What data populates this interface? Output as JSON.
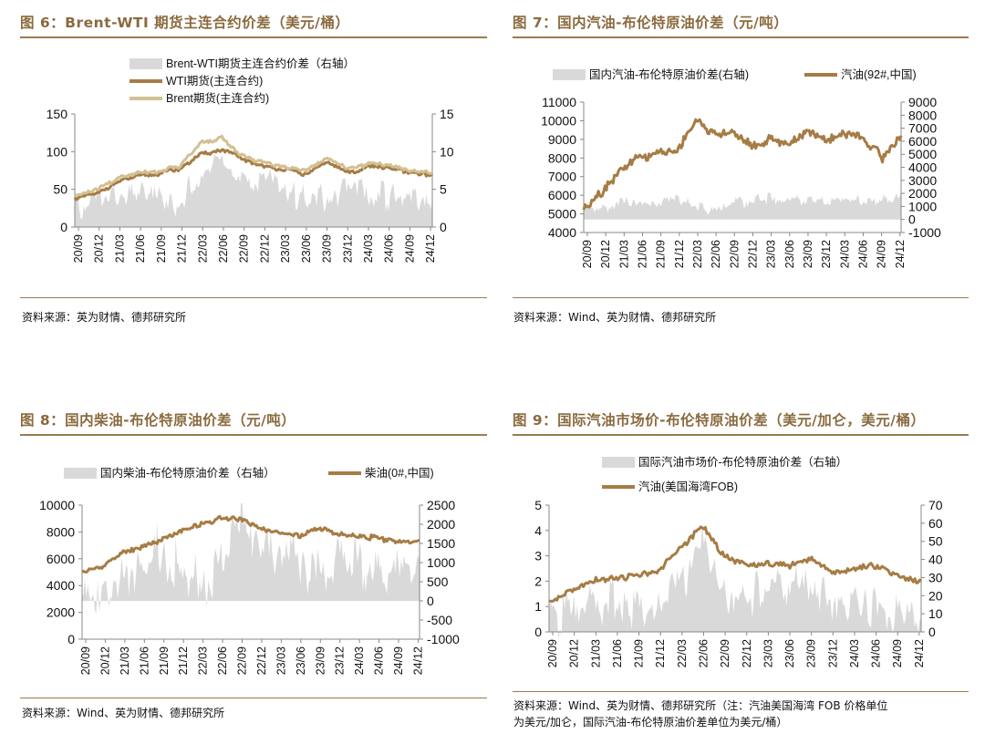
{
  "colors": {
    "area": "#d9d9d9",
    "line": "#a67c45",
    "line2": "#d3c092",
    "title": "#8B6A3E"
  },
  "x_ticks": [
    "20/09",
    "20/12",
    "21/03",
    "21/06",
    "21/09",
    "21/12",
    "22/03",
    "22/06",
    "22/09",
    "22/12",
    "23/03",
    "23/06",
    "23/09",
    "23/12",
    "24/03",
    "24/06",
    "24/09",
    "24/12"
  ],
  "x_ticks_short": [
    "20/09",
    "20/12",
    "21/03",
    "21/06",
    "21/09",
    "21/12",
    "22/03",
    "22/06",
    "22/09",
    "22/12",
    "23/03",
    "23/06",
    "23/09",
    "23/12",
    "24/03",
    "24/06",
    "24/09",
    "24/12"
  ],
  "panels": [
    {
      "title": "图 6：Brent-WTI 期货主连合约价差（美元/桶）",
      "source": "资料来源：英为财情、德邦研究所",
      "source_line2": "",
      "chart_data": {
        "type": "line",
        "legend": [
          "Brent-WTI期货主连合约价差（右轴）",
          "WTI期货(主连合约)",
          "Brent期货(主连合约)"
        ],
        "left_ticks": [
          "0",
          "50",
          "100",
          "150"
        ],
        "right_ticks": [
          "0",
          "5",
          "10",
          "15"
        ],
        "ylim": [
          0,
          150
        ],
        "ylim_right": [
          0,
          15
        ],
        "x": [
          0,
          1,
          2,
          3,
          4,
          5,
          6,
          7,
          8,
          9,
          10,
          11,
          12,
          13,
          14,
          15,
          16,
          17
        ],
        "series": [
          {
            "name": "WTI期货(主连合约)",
            "values": [
              38,
              44,
              60,
              68,
              71,
              78,
              96,
              103,
              90,
              80,
              76,
              70,
              86,
              72,
              80,
              78,
              72,
              68
            ]
          },
          {
            "name": "Brent期货(主连合约)",
            "values": [
              41,
              48,
              64,
              72,
              74,
              81,
              112,
              118,
              94,
              85,
              80,
              75,
              92,
              77,
              84,
              82,
              75,
              71
            ]
          },
          {
            "name": "Brent-WTI期货主连合约价差（右轴）",
            "values": [
              2.8,
              3.2,
              3.5,
              4,
              3.8,
              3.2,
              6.5,
              9,
              5.5,
              6,
              4.5,
              4,
              4.2,
              4.6,
              4.3,
              4.4,
              3.8,
              3.9
            ]
          }
        ]
      }
    },
    {
      "title": "图 7：国内汽油-布伦特原油价差（元/吨）",
      "source": "资料来源：Wind、英为财情、德邦研究所",
      "source_line2": "",
      "chart_data": {
        "type": "line",
        "legend": [
          "国内汽油-布伦特原油价差(右轴)",
          "汽油(92#,中国)"
        ],
        "left_ticks": [
          "4000",
          "5000",
          "6000",
          "7000",
          "8000",
          "9000",
          "10000",
          "11000"
        ],
        "right_ticks": [
          "-1000",
          "0",
          "1000",
          "2000",
          "3000",
          "4000",
          "5000",
          "6000",
          "7000",
          "8000",
          "9000"
        ],
        "ylim": [
          4000,
          11000
        ],
        "ylim_right": [
          -1000,
          9000
        ],
        "x": [
          0,
          1,
          2,
          3,
          4,
          5,
          6,
          7,
          8,
          9,
          10,
          11,
          12,
          13,
          14,
          15,
          16,
          17
        ],
        "series": [
          {
            "name": "汽油(92#,中国)",
            "values": [
              5300,
              6200,
              7400,
              8000,
              8300,
              8400,
              10000,
              9300,
              9400,
              8600,
              9000,
              8800,
              9500,
              8900,
              9300,
              9100,
              8000,
              9200
            ]
          },
          {
            "name": "国内汽油-布伦特原油价差(右轴)",
            "values": [
              900,
              800,
              1400,
              1200,
              1300,
              1500,
              1100,
              600,
              1300,
              1500,
              1600,
              1500,
              1400,
              1500,
              1600,
              1500,
              1400,
              2000
            ]
          }
        ]
      }
    },
    {
      "title": "图 8：国内柴油-布伦特原油价差（元/吨）",
      "source": "资料来源：Wind、英为财情、德邦研究所",
      "source_line2": "",
      "chart_data": {
        "type": "line",
        "legend": [
          "国内柴油-布伦特原油价差（右轴）",
          "柴油(0#,中国)"
        ],
        "left_ticks": [
          "0",
          "2000",
          "4000",
          "6000",
          "8000",
          "10000"
        ],
        "right_ticks": [
          "-1000",
          "-500",
          "0",
          "500",
          "1000",
          "1500",
          "2000",
          "2500"
        ],
        "ylim": [
          0,
          10000
        ],
        "ylim_right": [
          -1000,
          2500
        ],
        "x": [
          0,
          1,
          2,
          3,
          4,
          5,
          6,
          7,
          8,
          9,
          10,
          11,
          12,
          13,
          14,
          15,
          16,
          17
        ],
        "series": [
          {
            "name": "柴油(0#,中国)",
            "values": [
              5000,
              5400,
              6400,
              6900,
              7400,
              8000,
              8600,
              9000,
              9000,
              8200,
              7900,
              7700,
              8300,
              7800,
              7700,
              7500,
              7200,
              7400
            ]
          },
          {
            "name": "国内柴油-布伦特原油价差（右轴）",
            "values": [
              400,
              350,
              700,
              800,
              1300,
              700,
              500,
              1200,
              1700,
              1500,
              1300,
              900,
              700,
              1000,
              900,
              800,
              800,
              1000
            ]
          }
        ]
      }
    },
    {
      "title": "图 9：国际汽油市场价-布伦特原油价差（美元/加仑，美元/桶）",
      "source": "资料来源：Wind、英为财情、德邦研究所（注：汽油美国海湾 FOB 价格单位",
      "source_line2": "为美元/加仑，国际汽油-布伦特原油价差单位为美元/桶）",
      "chart_data": {
        "type": "line",
        "legend": [
          "国际汽油市场价-布伦特原油价差（右轴）",
          "汽油(美国海湾FOB)"
        ],
        "left_ticks": [
          "0",
          "1",
          "2",
          "3",
          "4",
          "5"
        ],
        "right_ticks": [
          "0",
          "10",
          "20",
          "30",
          "40",
          "50",
          "60",
          "70"
        ],
        "ylim": [
          0,
          5
        ],
        "ylim_right": [
          0,
          70
        ],
        "x": [
          0,
          1,
          2,
          3,
          4,
          5,
          6,
          7,
          8,
          9,
          10,
          11,
          12,
          13,
          14,
          15,
          16,
          17
        ],
        "series": [
          {
            "name": "汽油(美国海湾FOB)",
            "values": [
              1.2,
              1.6,
              2.0,
              2.1,
              2.2,
              2.4,
              3.3,
              4.2,
              3.0,
              2.6,
              2.7,
              2.6,
              2.9,
              2.3,
              2.5,
              2.6,
              2.2,
              2.0
            ]
          },
          {
            "name": "国际汽油市场价-布伦特原油价差（右轴）",
            "values": [
              6,
              10,
              16,
              18,
              14,
              12,
              26,
              52,
              20,
              18,
              28,
              24,
              30,
              10,
              16,
              14,
              10,
              8
            ]
          }
        ]
      }
    }
  ]
}
